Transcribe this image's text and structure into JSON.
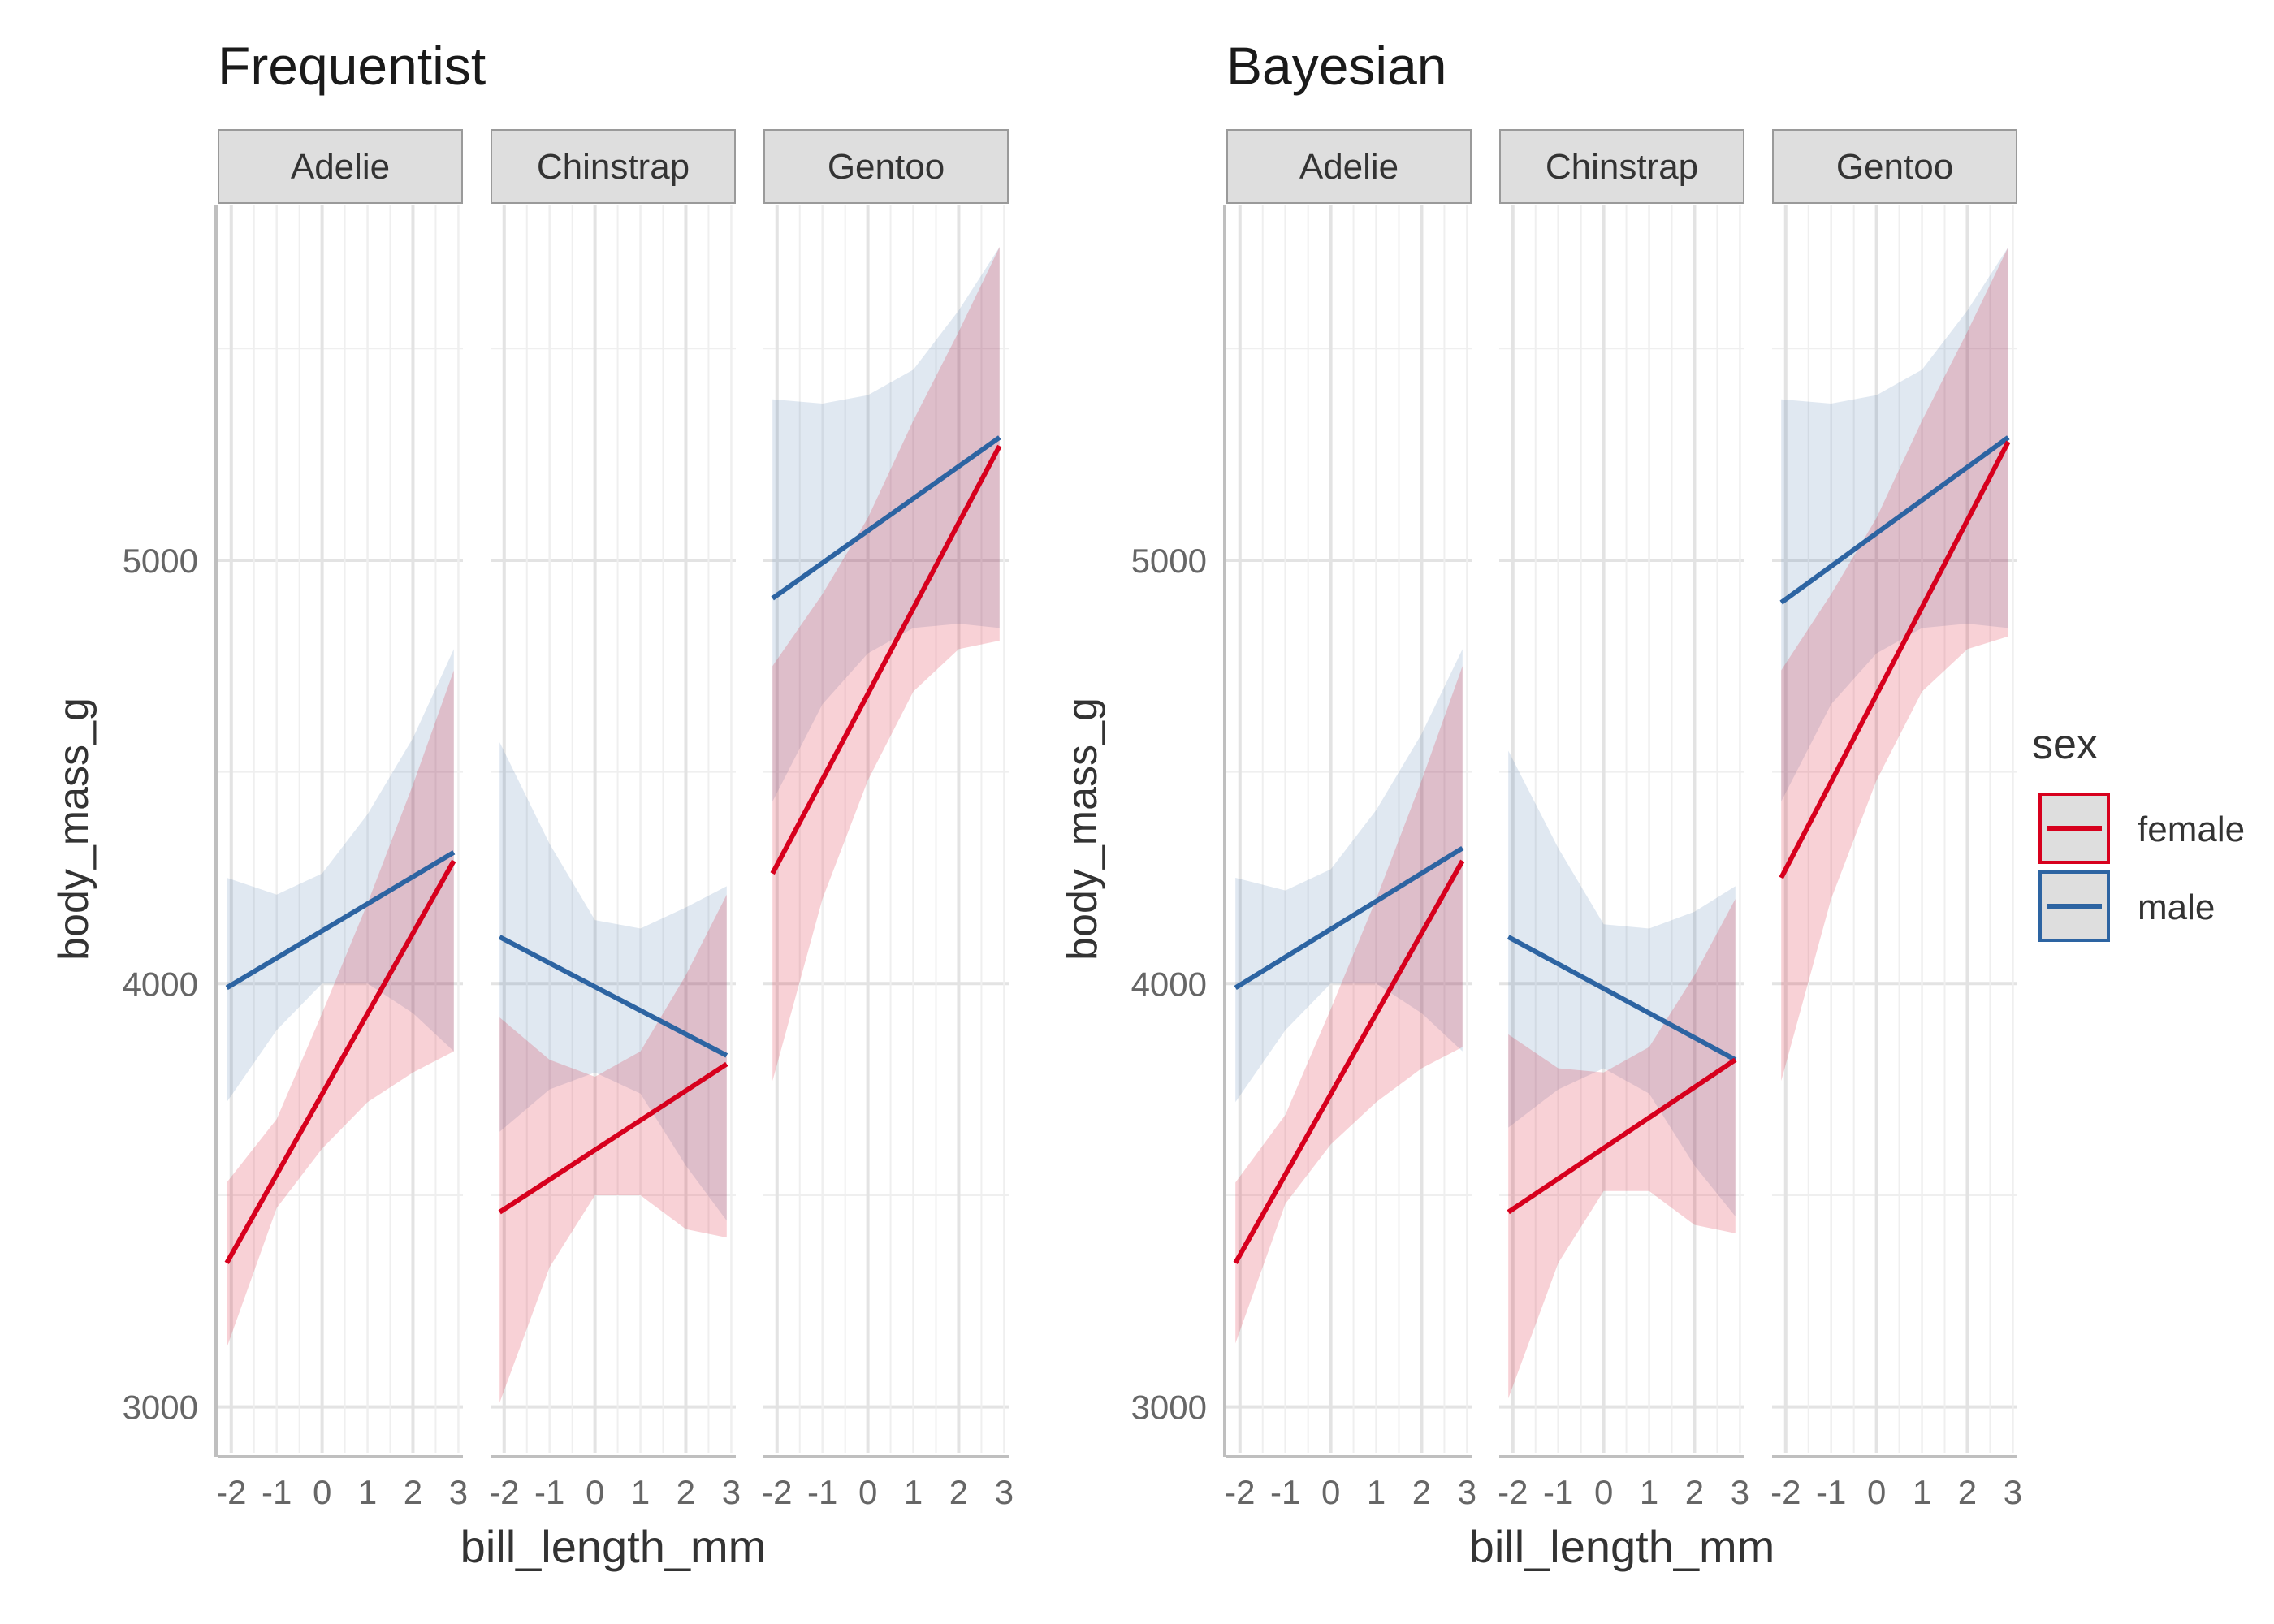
{
  "colors": {
    "female": "#D7001D",
    "male": "#2D64A2",
    "female_ribbon": "#F7A8B3",
    "male_ribbon": "#C8D6E8",
    "strip_fill": "#DEDEDE",
    "strip_border": "#9A9A9A",
    "grid_major": "#E3E3E3",
    "grid_minor": "#EFEFEF",
    "axis_line": "#BFBFBF",
    "tick_text": "#666666",
    "title_text": "#1a1a1a",
    "label_text": "#333333"
  },
  "legend": {
    "title": "sex",
    "entries": [
      {
        "key": "female",
        "label": "female"
      },
      {
        "key": "male",
        "label": "male"
      }
    ]
  },
  "chart_data": [
    {
      "type": "line",
      "title": "Frequentist",
      "xlabel": "bill_length_mm",
      "ylabel": "body_mass_g",
      "xlim": [
        -2.3,
        3.1
      ],
      "ylim": [
        2890,
        5840
      ],
      "x_major_ticks": [
        -2,
        0,
        2
      ],
      "x_tick_labels": [
        "-2",
        "-1",
        "0",
        "1",
        "2",
        "3"
      ],
      "x_tick_values": [
        -2,
        -1,
        0,
        1,
        2,
        3
      ],
      "y_tick_labels": [
        "3000",
        "4000",
        "5000"
      ],
      "y_tick_values": [
        3000,
        4000,
        5000
      ],
      "y_minor_ticks": [
        3500,
        4500,
        5500
      ],
      "facets": [
        {
          "label": "Adelie",
          "series": [
            {
              "name": "female",
              "x": [
                -2.1,
                2.9
              ],
              "y": [
                3340,
                4290
              ],
              "band_x": [
                -2.1,
                -1.0,
                0.0,
                1.0,
                2.0,
                2.9
              ],
              "band_lower": [
                3140,
                3470,
                3610,
                3720,
                3790,
                3840
              ],
              "band_upper": [
                3530,
                3680,
                3930,
                4190,
                4470,
                4740
              ]
            },
            {
              "name": "male",
              "x": [
                -2.1,
                2.9
              ],
              "y": [
                3990,
                4310
              ],
              "band_x": [
                -2.1,
                -1.0,
                0.0,
                1.0,
                2.0,
                2.9
              ],
              "band_lower": [
                3720,
                3890,
                4000,
                4000,
                3930,
                3840
              ],
              "band_upper": [
                4250,
                4210,
                4260,
                4400,
                4580,
                4790
              ]
            }
          ]
        },
        {
          "label": "Chinstrap",
          "series": [
            {
              "name": "female",
              "x": [
                -2.1,
                2.9
              ],
              "y": [
                3460,
                3810
              ],
              "band_x": [
                -2.1,
                -1.0,
                0.0,
                1.0,
                2.0,
                2.9
              ],
              "band_lower": [
                3010,
                3330,
                3500,
                3500,
                3420,
                3400
              ],
              "band_upper": [
                3920,
                3820,
                3780,
                3840,
                4020,
                4210
              ]
            },
            {
              "name": "male",
              "x": [
                -2.1,
                2.9
              ],
              "y": [
                4110,
                3830
              ],
              "band_x": [
                -2.1,
                -1.0,
                0.0,
                1.0,
                2.0,
                2.9
              ],
              "band_lower": [
                3650,
                3750,
                3790,
                3740,
                3570,
                3440
              ],
              "band_upper": [
                4570,
                4330,
                4150,
                4130,
                4180,
                4230
              ]
            }
          ]
        },
        {
          "label": "Gentoo",
          "series": [
            {
              "name": "female",
              "x": [
                -2.1,
                2.9
              ],
              "y": [
                4260,
                5270
              ],
              "band_x": [
                -2.1,
                -1.0,
                0.0,
                1.0,
                2.0,
                2.9
              ],
              "band_lower": [
                3770,
                4200,
                4480,
                4690,
                4790,
                4810
              ],
              "band_upper": [
                4750,
                4920,
                5100,
                5330,
                5540,
                5740
              ]
            },
            {
              "name": "male",
              "x": [
                -2.1,
                2.9
              ],
              "y": [
                4910,
                5290
              ],
              "band_x": [
                -2.1,
                -1.0,
                0.0,
                1.0,
                2.0,
                2.9
              ],
              "band_lower": [
                4430,
                4660,
                4780,
                4840,
                4850,
                4840
              ],
              "band_upper": [
                5380,
                5370,
                5390,
                5450,
                5590,
                5740
              ]
            }
          ]
        }
      ]
    },
    {
      "type": "line",
      "title": "Bayesian",
      "xlabel": "bill_length_mm",
      "ylabel": "body_mass_g",
      "xlim": [
        -2.3,
        3.1
      ],
      "ylim": [
        2890,
        5840
      ],
      "x_major_ticks": [
        -2,
        0,
        2
      ],
      "x_tick_labels": [
        "-2",
        "-1",
        "0",
        "1",
        "2",
        "3"
      ],
      "x_tick_values": [
        -2,
        -1,
        0,
        1,
        2,
        3
      ],
      "y_tick_labels": [
        "3000",
        "4000",
        "5000"
      ],
      "y_tick_values": [
        3000,
        4000,
        5000
      ],
      "y_minor_ticks": [
        3500,
        4500,
        5500
      ],
      "facets": [
        {
          "label": "Adelie",
          "series": [
            {
              "name": "female",
              "x": [
                -2.1,
                2.9
              ],
              "y": [
                3340,
                4290
              ],
              "band_x": [
                -2.1,
                -1.0,
                0.0,
                1.0,
                2.0,
                2.9
              ],
              "band_lower": [
                3150,
                3480,
                3620,
                3720,
                3800,
                3850
              ],
              "band_upper": [
                3530,
                3690,
                3940,
                4200,
                4480,
                4750
              ]
            },
            {
              "name": "male",
              "x": [
                -2.1,
                2.9
              ],
              "y": [
                3990,
                4320
              ],
              "band_x": [
                -2.1,
                -1.0,
                0.0,
                1.0,
                2.0,
                2.9
              ],
              "band_lower": [
                3720,
                3890,
                4000,
                4000,
                3930,
                3840
              ],
              "band_upper": [
                4250,
                4220,
                4270,
                4410,
                4590,
                4790
              ]
            }
          ]
        },
        {
          "label": "Chinstrap",
          "series": [
            {
              "name": "female",
              "x": [
                -2.1,
                2.9
              ],
              "y": [
                3460,
                3820
              ],
              "band_x": [
                -2.1,
                -1.0,
                0.0,
                1.0,
                2.0,
                2.9
              ],
              "band_lower": [
                3020,
                3340,
                3510,
                3510,
                3430,
                3410
              ],
              "band_upper": [
                3880,
                3800,
                3790,
                3850,
                4020,
                4200
              ]
            },
            {
              "name": "male",
              "x": [
                -2.1,
                2.9
              ],
              "y": [
                4110,
                3820
              ],
              "band_x": [
                -2.1,
                -1.0,
                0.0,
                1.0,
                2.0,
                2.9
              ],
              "band_lower": [
                3660,
                3750,
                3800,
                3740,
                3570,
                3450
              ],
              "band_upper": [
                4550,
                4320,
                4140,
                4130,
                4170,
                4230
              ]
            }
          ]
        },
        {
          "label": "Gentoo",
          "series": [
            {
              "name": "female",
              "x": [
                -2.1,
                2.9
              ],
              "y": [
                4250,
                5280
              ],
              "band_x": [
                -2.1,
                -1.0,
                0.0,
                1.0,
                2.0,
                2.9
              ],
              "band_lower": [
                3770,
                4200,
                4480,
                4690,
                4790,
                4820
              ],
              "band_upper": [
                4740,
                4920,
                5100,
                5330,
                5540,
                5740
              ]
            },
            {
              "name": "male",
              "x": [
                -2.1,
                2.9
              ],
              "y": [
                4900,
                5290
              ],
              "band_x": [
                -2.1,
                -1.0,
                0.0,
                1.0,
                2.0,
                2.9
              ],
              "band_lower": [
                4430,
                4660,
                4780,
                4840,
                4850,
                4840
              ],
              "band_upper": [
                5380,
                5370,
                5390,
                5450,
                5590,
                5740
              ]
            }
          ]
        }
      ]
    }
  ]
}
